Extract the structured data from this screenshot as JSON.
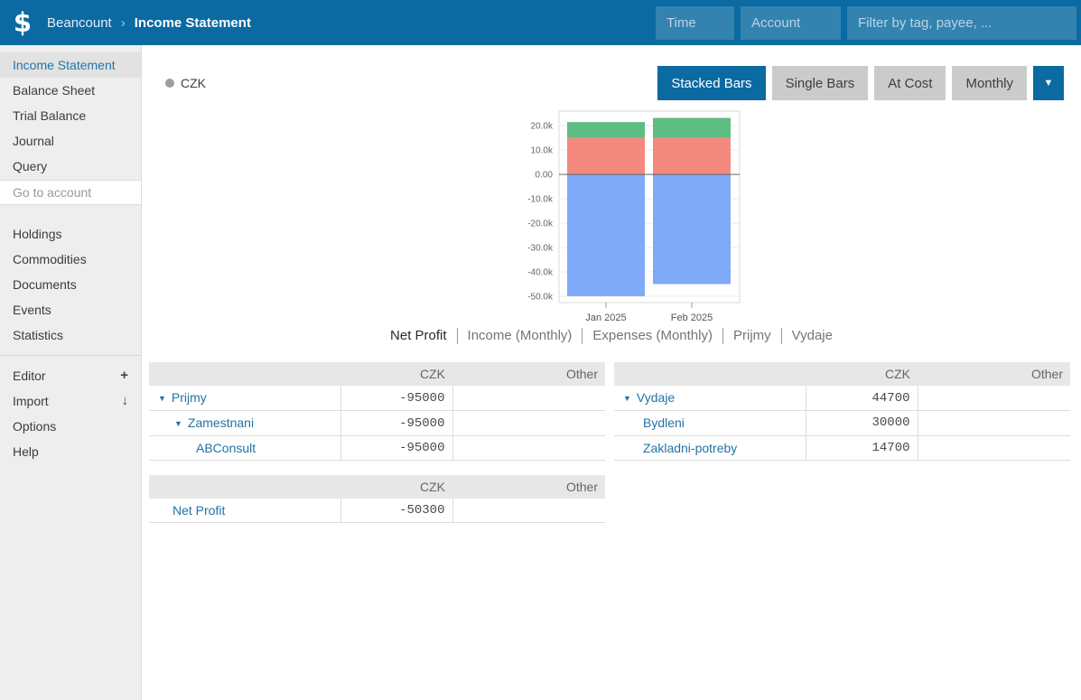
{
  "icons": {
    "logo": "$",
    "breadcrumb_separator": "›",
    "dropdown_arrow": "▼",
    "toggle_arrow": "▼"
  },
  "header": {
    "app_name": "Beancount",
    "page_title": "Income Statement",
    "time_placeholder": "Time",
    "account_placeholder": "Account",
    "filter_placeholder": "Filter by tag, payee, ..."
  },
  "sidebar": {
    "reports": [
      {
        "label": "Income Statement",
        "active": true
      },
      {
        "label": "Balance Sheet",
        "active": false
      },
      {
        "label": "Trial Balance",
        "active": false
      },
      {
        "label": "Journal",
        "active": false
      },
      {
        "label": "Query",
        "active": false
      }
    ],
    "goto_placeholder": "Go to account",
    "views": [
      {
        "label": "Holdings"
      },
      {
        "label": "Commodities"
      },
      {
        "label": "Documents"
      },
      {
        "label": "Events"
      },
      {
        "label": "Statistics"
      }
    ],
    "tools": [
      {
        "label": "Editor",
        "badge": "+"
      },
      {
        "label": "Import",
        "badge": "↓"
      },
      {
        "label": "Options",
        "badge": ""
      },
      {
        "label": "Help",
        "badge": ""
      }
    ]
  },
  "toolbar": {
    "legend_label": "CZK",
    "buttons": [
      {
        "label": "Stacked Bars",
        "active": true
      },
      {
        "label": "Single Bars",
        "active": false
      },
      {
        "label": "At Cost",
        "active": false
      },
      {
        "label": "Monthly",
        "active": false
      }
    ]
  },
  "chart_tabs": [
    {
      "label": "Net Profit",
      "selected": true
    },
    {
      "label": "Income (Monthly)",
      "selected": false
    },
    {
      "label": "Expenses (Monthly)",
      "selected": false
    },
    {
      "label": "Prijmy",
      "selected": false
    },
    {
      "label": "Vydaje",
      "selected": false
    }
  ],
  "chart_data": {
    "type": "bar",
    "mode": "stacked",
    "currency": "CZK",
    "x": [
      "Jan 2025",
      "Feb 2025"
    ],
    "series": [
      {
        "name": "Prijmy",
        "color": "#80aaf8",
        "values": [
          -50000,
          -45000
        ]
      },
      {
        "name": "Bydleni",
        "color": "#f4897f",
        "values": [
          15000,
          15000
        ]
      },
      {
        "name": "Zakladni-potreby",
        "color": "#5dbd82",
        "values": [
          6500,
          8200
        ]
      }
    ],
    "ylim": [
      -52600,
      26000
    ],
    "yticks": [
      20000,
      10000,
      0,
      -10000,
      -20000,
      -30000,
      -40000,
      -50000
    ],
    "ytick_labels": [
      "20.0k",
      "10.0k",
      "0.00",
      "-10.0k",
      "-20.0k",
      "-30.0k",
      "-40.0k",
      "-50.0k"
    ],
    "legend": [
      "CZK"
    ],
    "legend_position": "top-left",
    "grid": true,
    "xlabel": "",
    "ylabel": ""
  },
  "tables": {
    "columns": {
      "czk": "CZK",
      "other": "Other"
    },
    "income": {
      "rows": [
        {
          "name": "Prijmy",
          "czk": "-95000",
          "other": ""
        },
        {
          "name": "Zamestnani",
          "czk": "-95000",
          "other": ""
        },
        {
          "name": "ABConsult",
          "czk": "-95000",
          "other": ""
        }
      ]
    },
    "expenses": {
      "rows": [
        {
          "name": "Vydaje",
          "czk": "44700",
          "other": ""
        },
        {
          "name": "Bydleni",
          "czk": "30000",
          "other": ""
        },
        {
          "name": "Zakladni-potreby",
          "czk": "14700",
          "other": ""
        }
      ]
    },
    "net": {
      "rows": [
        {
          "name": "Net Profit",
          "czk": "-50300",
          "other": ""
        }
      ]
    }
  },
  "colors": {
    "accent": "#0a6aa1",
    "link": "#2173a7",
    "legend_dot": "#9e9e9e",
    "bar_negative": "#80aaf8",
    "bar_bydleni": "#f4897f",
    "bar_zakladni": "#5dbd82"
  }
}
